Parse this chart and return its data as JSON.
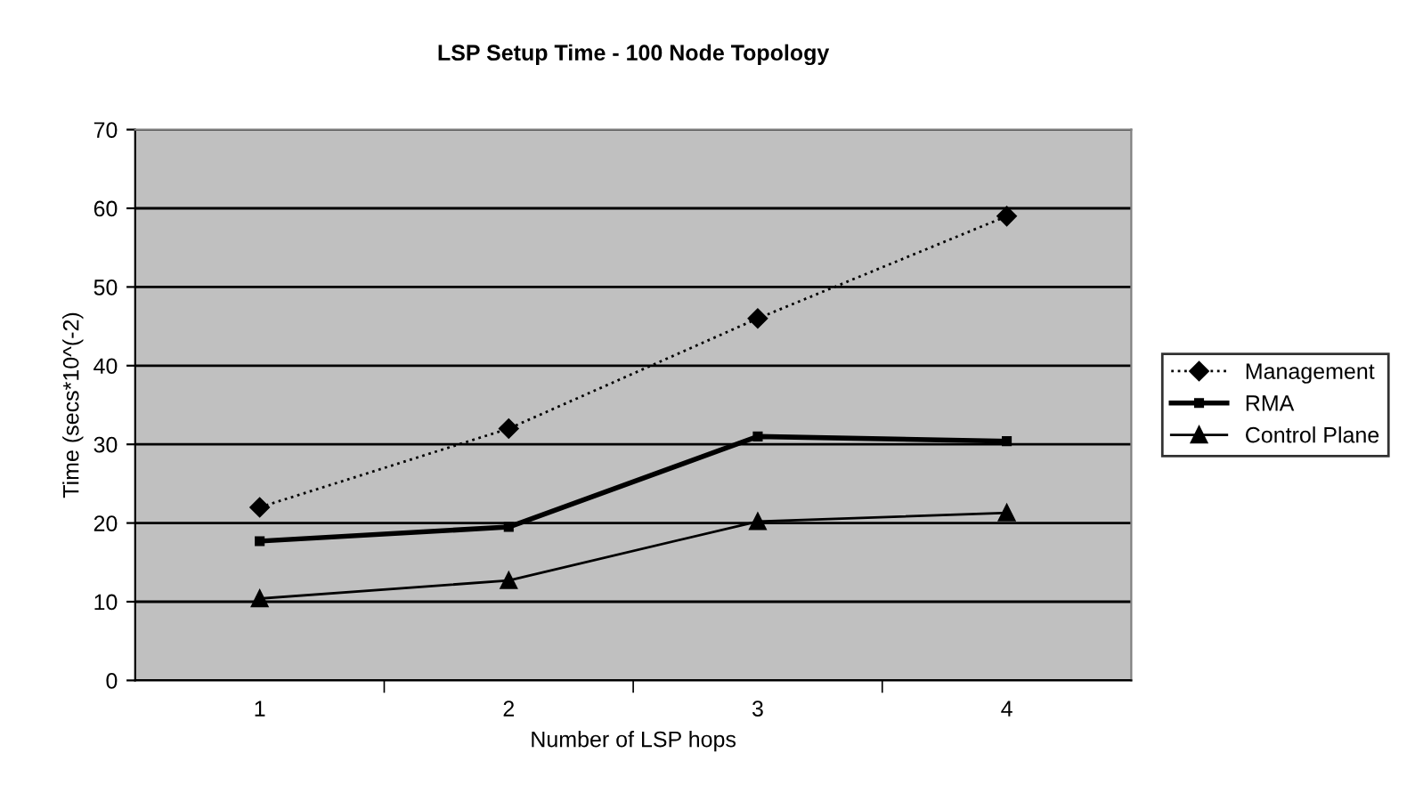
{
  "chart_data": {
    "type": "line",
    "title": "LSP Setup Time - 100 Node Topology",
    "xlabel": "Number of LSP hops",
    "ylabel": "Time (secs*10^(-2)",
    "categories": [
      "1",
      "2",
      "3",
      "4"
    ],
    "series": [
      {
        "name": "Management",
        "color": "#000000",
        "marker": "diamond",
        "line_style": "dotted",
        "values": [
          22,
          32,
          46,
          59
        ]
      },
      {
        "name": "RMA",
        "color": "#000000",
        "marker": "square",
        "line_style": "solid",
        "values": [
          17.7,
          19.5,
          31,
          30.4
        ]
      },
      {
        "name": "Control Plane",
        "color": "#000000",
        "marker": "triangle",
        "line_style": "solid",
        "values": [
          10.4,
          12.7,
          20.2,
          21.3
        ]
      }
    ],
    "ylim": [
      0,
      70
    ],
    "yticks": [
      0,
      10,
      20,
      30,
      40,
      50,
      60,
      70
    ],
    "grid": "y",
    "legend": "right"
  }
}
